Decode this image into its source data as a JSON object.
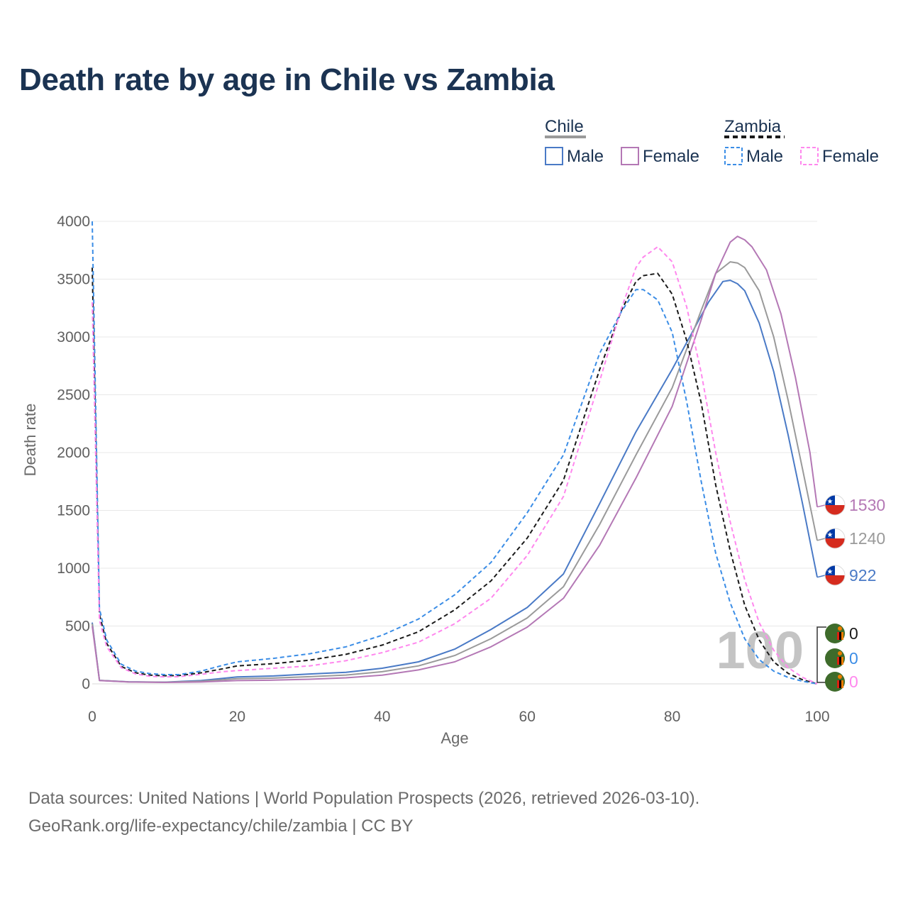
{
  "title": "Death rate by age in Chile vs Zambia",
  "legend": {
    "groups": [
      {
        "country": "Chile",
        "items": [
          "Male",
          "Female"
        ]
      },
      {
        "country": "Zambia",
        "items": [
          "Male",
          "Female"
        ]
      }
    ]
  },
  "chart_data": {
    "type": "line",
    "title": "Death rate by age in Chile vs Zambia",
    "xlabel": "Age",
    "ylabel": "Death rate",
    "xlim": [
      0,
      100
    ],
    "ylim": [
      0,
      4000
    ],
    "x_ticks": [
      "0",
      "20",
      "40",
      "60",
      "80",
      "100"
    ],
    "y_ticks": [
      "0",
      "500",
      "1000",
      "1500",
      "2000",
      "2500",
      "3000",
      "3500",
      "4000"
    ],
    "x_ticks_values": [
      0,
      20,
      40,
      60,
      80,
      100
    ],
    "y_ticks_values": [
      0,
      500,
      1000,
      1500,
      2000,
      2500,
      3000,
      3500,
      4000
    ],
    "grid": true,
    "age_indicator": "100",
    "series": [
      {
        "name": "Chile Male",
        "country": "Chile",
        "sex": "Male",
        "color": "#4a7ac6",
        "dashed": false,
        "end_label": "922",
        "points": [
          [
            0,
            530
          ],
          [
            1,
            30
          ],
          [
            5,
            18
          ],
          [
            10,
            15
          ],
          [
            15,
            28
          ],
          [
            20,
            60
          ],
          [
            25,
            68
          ],
          [
            30,
            85
          ],
          [
            35,
            100
          ],
          [
            40,
            135
          ],
          [
            45,
            190
          ],
          [
            50,
            300
          ],
          [
            55,
            470
          ],
          [
            60,
            660
          ],
          [
            65,
            950
          ],
          [
            70,
            1560
          ],
          [
            75,
            2180
          ],
          [
            80,
            2720
          ],
          [
            85,
            3300
          ],
          [
            87,
            3480
          ],
          [
            88,
            3490
          ],
          [
            89,
            3460
          ],
          [
            90,
            3400
          ],
          [
            92,
            3120
          ],
          [
            94,
            2700
          ],
          [
            96,
            2150
          ],
          [
            98,
            1550
          ],
          [
            100,
            922
          ]
        ]
      },
      {
        "name": "Chile Both",
        "country": "Chile",
        "sex": "Both",
        "color": "#9a9a9a",
        "dashed": false,
        "end_label": "1240",
        "points": [
          [
            0,
            520
          ],
          [
            1,
            30
          ],
          [
            5,
            17
          ],
          [
            10,
            14
          ],
          [
            15,
            22
          ],
          [
            20,
            44
          ],
          [
            25,
            50
          ],
          [
            30,
            62
          ],
          [
            35,
            76
          ],
          [
            40,
            105
          ],
          [
            45,
            155
          ],
          [
            50,
            245
          ],
          [
            55,
            390
          ],
          [
            60,
            570
          ],
          [
            65,
            840
          ],
          [
            70,
            1380
          ],
          [
            75,
            1980
          ],
          [
            80,
            2560
          ],
          [
            84,
            3230
          ],
          [
            86,
            3550
          ],
          [
            88,
            3650
          ],
          [
            89,
            3640
          ],
          [
            90,
            3600
          ],
          [
            92,
            3400
          ],
          [
            94,
            3000
          ],
          [
            96,
            2450
          ],
          [
            98,
            1850
          ],
          [
            100,
            1240
          ]
        ]
      },
      {
        "name": "Chile Female",
        "country": "Chile",
        "sex": "Female",
        "color": "#b478b5",
        "dashed": false,
        "end_label": "1530",
        "points": [
          [
            0,
            500
          ],
          [
            1,
            28
          ],
          [
            5,
            16
          ],
          [
            10,
            12
          ],
          [
            15,
            16
          ],
          [
            20,
            28
          ],
          [
            25,
            32
          ],
          [
            30,
            40
          ],
          [
            35,
            52
          ],
          [
            40,
            75
          ],
          [
            45,
            120
          ],
          [
            50,
            190
          ],
          [
            55,
            320
          ],
          [
            60,
            490
          ],
          [
            65,
            740
          ],
          [
            70,
            1200
          ],
          [
            75,
            1780
          ],
          [
            80,
            2400
          ],
          [
            84,
            3150
          ],
          [
            86,
            3550
          ],
          [
            88,
            3820
          ],
          [
            89,
            3870
          ],
          [
            90,
            3840
          ],
          [
            91,
            3780
          ],
          [
            93,
            3580
          ],
          [
            95,
            3200
          ],
          [
            97,
            2650
          ],
          [
            99,
            2000
          ],
          [
            100,
            1530
          ]
        ]
      },
      {
        "name": "Zambia Both",
        "country": "Zambia",
        "sex": "Both",
        "color": "#1a1a1a",
        "dashed": true,
        "end_label": "0",
        "points": [
          [
            0,
            3600
          ],
          [
            1,
            600
          ],
          [
            2,
            350
          ],
          [
            4,
            150
          ],
          [
            6,
            95
          ],
          [
            8,
            75
          ],
          [
            10,
            70
          ],
          [
            12,
            72
          ],
          [
            15,
            95
          ],
          [
            18,
            130
          ],
          [
            20,
            155
          ],
          [
            25,
            175
          ],
          [
            30,
            205
          ],
          [
            35,
            255
          ],
          [
            40,
            335
          ],
          [
            45,
            450
          ],
          [
            50,
            640
          ],
          [
            55,
            890
          ],
          [
            60,
            1260
          ],
          [
            65,
            1760
          ],
          [
            70,
            2720
          ],
          [
            73,
            3230
          ],
          [
            75,
            3480
          ],
          [
            76,
            3530
          ],
          [
            78,
            3550
          ],
          [
            80,
            3370
          ],
          [
            82,
            2970
          ],
          [
            84,
            2430
          ],
          [
            86,
            1720
          ],
          [
            88,
            1150
          ],
          [
            90,
            680
          ],
          [
            92,
            380
          ],
          [
            94,
            190
          ],
          [
            96,
            90
          ],
          [
            98,
            35
          ],
          [
            100,
            0
          ]
        ]
      },
      {
        "name": "Zambia Male",
        "country": "Zambia",
        "sex": "Male",
        "color": "#3b8de6",
        "dashed": true,
        "end_label": "0",
        "points": [
          [
            0,
            4000
          ],
          [
            1,
            650
          ],
          [
            2,
            380
          ],
          [
            4,
            170
          ],
          [
            6,
            110
          ],
          [
            8,
            88
          ],
          [
            10,
            80
          ],
          [
            12,
            80
          ],
          [
            15,
            110
          ],
          [
            18,
            160
          ],
          [
            20,
            190
          ],
          [
            25,
            220
          ],
          [
            30,
            260
          ],
          [
            35,
            320
          ],
          [
            40,
            420
          ],
          [
            45,
            560
          ],
          [
            50,
            770
          ],
          [
            55,
            1050
          ],
          [
            60,
            1480
          ],
          [
            65,
            1980
          ],
          [
            70,
            2860
          ],
          [
            73,
            3220
          ],
          [
            75,
            3410
          ],
          [
            76,
            3410
          ],
          [
            78,
            3320
          ],
          [
            80,
            3040
          ],
          [
            82,
            2440
          ],
          [
            84,
            1750
          ],
          [
            86,
            1130
          ],
          [
            88,
            700
          ],
          [
            90,
            390
          ],
          [
            92,
            210
          ],
          [
            94,
            110
          ],
          [
            96,
            55
          ],
          [
            98,
            22
          ],
          [
            100,
            0
          ]
        ]
      },
      {
        "name": "Zambia Female",
        "country": "Zambia",
        "sex": "Female",
        "color": "#ff88ee",
        "dashed": true,
        "end_label": "0",
        "points": [
          [
            0,
            3300
          ],
          [
            1,
            550
          ],
          [
            2,
            320
          ],
          [
            4,
            140
          ],
          [
            6,
            85
          ],
          [
            8,
            65
          ],
          [
            10,
            60
          ],
          [
            12,
            62
          ],
          [
            15,
            82
          ],
          [
            18,
            105
          ],
          [
            20,
            115
          ],
          [
            25,
            135
          ],
          [
            30,
            155
          ],
          [
            35,
            200
          ],
          [
            40,
            270
          ],
          [
            45,
            360
          ],
          [
            50,
            520
          ],
          [
            55,
            740
          ],
          [
            60,
            1110
          ],
          [
            65,
            1620
          ],
          [
            70,
            2620
          ],
          [
            73,
            3250
          ],
          [
            75,
            3600
          ],
          [
            76,
            3690
          ],
          [
            78,
            3780
          ],
          [
            80,
            3650
          ],
          [
            82,
            3260
          ],
          [
            84,
            2690
          ],
          [
            86,
            2000
          ],
          [
            88,
            1400
          ],
          [
            90,
            900
          ],
          [
            92,
            530
          ],
          [
            94,
            290
          ],
          [
            96,
            140
          ],
          [
            98,
            55
          ],
          [
            100,
            0
          ]
        ]
      }
    ]
  },
  "footer": {
    "line1": "Data sources: United Nations | World Population Prospects (2026, retrieved 2026-03-10).",
    "line2": "GeoRank.org/life-expectancy/chile/zambia | CC BY"
  }
}
